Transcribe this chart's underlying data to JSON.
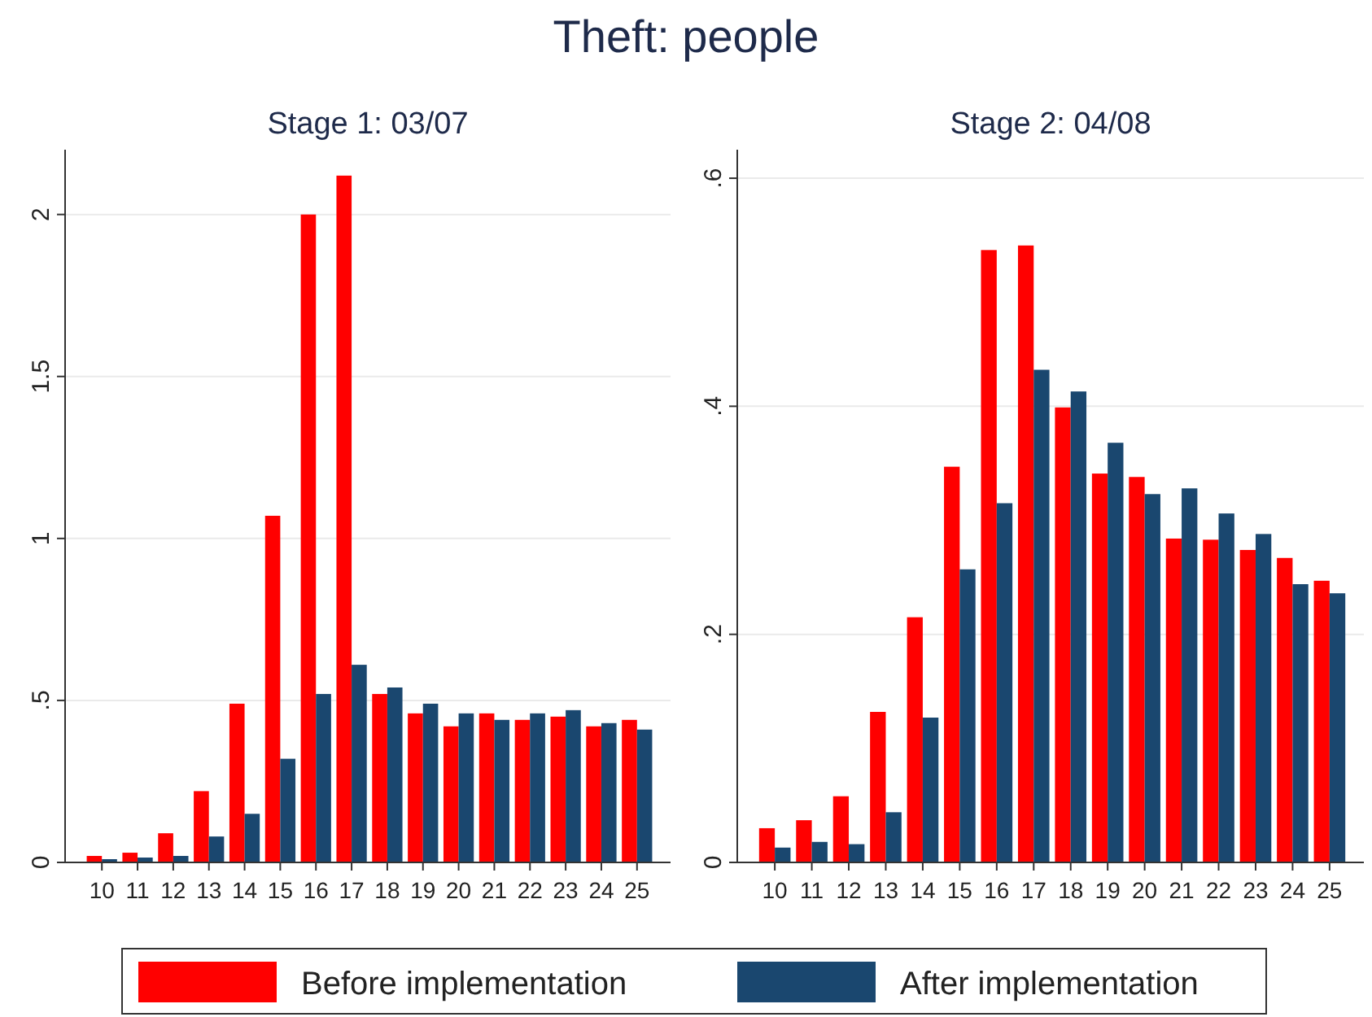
{
  "chart_data": [
    {
      "type": "bar",
      "subtitle": "Stage 1: 03/07",
      "annotations": [
        "Theft: people"
      ],
      "categories": [
        "10",
        "11",
        "12",
        "13",
        "14",
        "15",
        "16",
        "17",
        "18",
        "19",
        "20",
        "21",
        "22",
        "23",
        "24",
        "25"
      ],
      "series": [
        {
          "name": "Before implementation",
          "color": "#ff0000",
          "values": [
            0.02,
            0.03,
            0.09,
            0.22,
            0.49,
            1.07,
            2.0,
            2.12,
            0.52,
            0.46,
            0.42,
            0.46,
            0.44,
            0.45,
            0.42,
            0.44
          ]
        },
        {
          "name": "After implementation",
          "color": "#1a476f",
          "values": [
            0.01,
            0.015,
            0.02,
            0.08,
            0.15,
            0.32,
            0.52,
            0.61,
            0.54,
            0.49,
            0.46,
            0.44,
            0.46,
            0.47,
            0.43,
            0.41
          ]
        }
      ],
      "ylim": [
        0,
        2.2
      ],
      "yticks": [
        0,
        {
          "value": 0.5,
          "label": ".5"
        },
        1,
        1.5,
        2
      ],
      "grid": "y",
      "legend": "bottom"
    },
    {
      "type": "bar",
      "subtitle": "Stage 2: 04/08",
      "categories": [
        "10",
        "11",
        "12",
        "13",
        "14",
        "15",
        "16",
        "17",
        "18",
        "19",
        "20",
        "21",
        "22",
        "23",
        "24",
        "25"
      ],
      "series": [
        {
          "color": "#ff0000",
          "values": [
            0.03,
            0.037,
            0.058,
            0.132,
            0.215,
            0.347,
            0.537,
            0.541,
            0.399,
            0.341,
            0.338,
            0.284,
            0.283,
            0.274,
            0.267,
            0.247
          ]
        },
        {
          "color": "#1a476f",
          "values": [
            0.013,
            0.018,
            0.016,
            0.044,
            0.127,
            0.257,
            0.315,
            0.432,
            0.413,
            0.368,
            0.323,
            0.328,
            0.306,
            0.288,
            0.244,
            0.236
          ]
        }
      ],
      "ylim": [
        0,
        0.625
      ],
      "yticks": [
        0,
        {
          "value": 0.2,
          "label": ".2"
        },
        {
          "value": 0.4,
          "label": ".4"
        },
        {
          "value": 0.6,
          "label": ".6"
        }
      ],
      "grid": "y"
    }
  ]
}
